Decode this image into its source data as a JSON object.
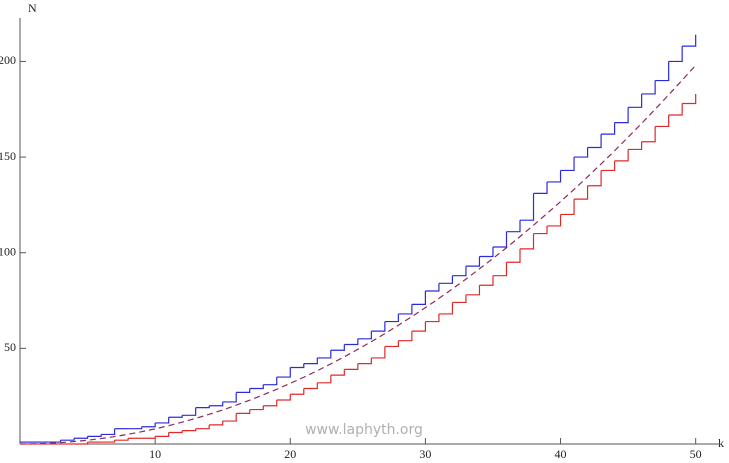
{
  "chart_data": {
    "type": "step",
    "x_label": "k",
    "y_label": "N",
    "annotation": "www.laphyth.org",
    "x": [
      0,
      1,
      2,
      3,
      4,
      5,
      6,
      7,
      8,
      9,
      10,
      11,
      12,
      13,
      14,
      15,
      16,
      17,
      18,
      19,
      20,
      21,
      22,
      23,
      24,
      25,
      26,
      27,
      28,
      29,
      30,
      31,
      32,
      33,
      34,
      35,
      36,
      37,
      38,
      39,
      40,
      41,
      42,
      43,
      44,
      45,
      46,
      47,
      48,
      49,
      50
    ],
    "series": [
      {
        "color": "#2b2bdc",
        "style": "step",
        "values": [
          1,
          1,
          1,
          2,
          3,
          4,
          5,
          8,
          8,
          9,
          11,
          14,
          15,
          19,
          20,
          22,
          27,
          29,
          31,
          35,
          40,
          42,
          45,
          49,
          52,
          55,
          59,
          64,
          68,
          73,
          80,
          84,
          88,
          93,
          98,
          103,
          111,
          117,
          131,
          137,
          143,
          150,
          155,
          162,
          168,
          176,
          183,
          190,
          200,
          208,
          214
        ]
      },
      {
        "color": "#8b2a5a",
        "style": "dashed",
        "values": [
          0,
          0.08,
          0.32,
          0.71,
          1.27,
          1.98,
          2.85,
          3.88,
          5.07,
          6.42,
          7.92,
          9.58,
          11.4,
          13.4,
          15.5,
          17.8,
          20.3,
          22.9,
          25.7,
          28.6,
          31.7,
          34.9,
          38.3,
          41.9,
          45.6,
          49.5,
          53.5,
          57.7,
          62.1,
          66.6,
          71.3,
          76.1,
          81.1,
          86.2,
          91.6,
          97,
          102.6,
          108.4,
          114.4,
          120.5,
          126.7,
          133.1,
          139.7,
          146.4,
          153.3,
          160.4,
          167.6,
          175,
          182.5,
          190.2,
          198
        ]
      },
      {
        "color": "#e02a2a",
        "style": "step",
        "values": [
          0,
          0,
          0,
          0,
          0,
          1,
          1,
          2,
          3,
          3,
          4,
          6,
          7,
          8,
          10,
          12,
          16,
          18,
          20,
          23,
          26,
          29,
          32,
          36,
          39,
          42,
          45,
          51,
          54,
          59,
          64,
          68,
          74,
          78,
          83,
          88,
          95,
          102,
          110,
          114,
          120,
          128,
          135,
          143,
          148,
          154,
          158,
          166,
          172,
          178,
          183
        ]
      }
    ],
    "xlim": [
      0,
      51.8
    ],
    "ylim": [
      0,
      222.7
    ],
    "xticks": [
      10,
      20,
      30,
      40,
      50
    ],
    "yticks": [
      50,
      100,
      150,
      200
    ]
  }
}
